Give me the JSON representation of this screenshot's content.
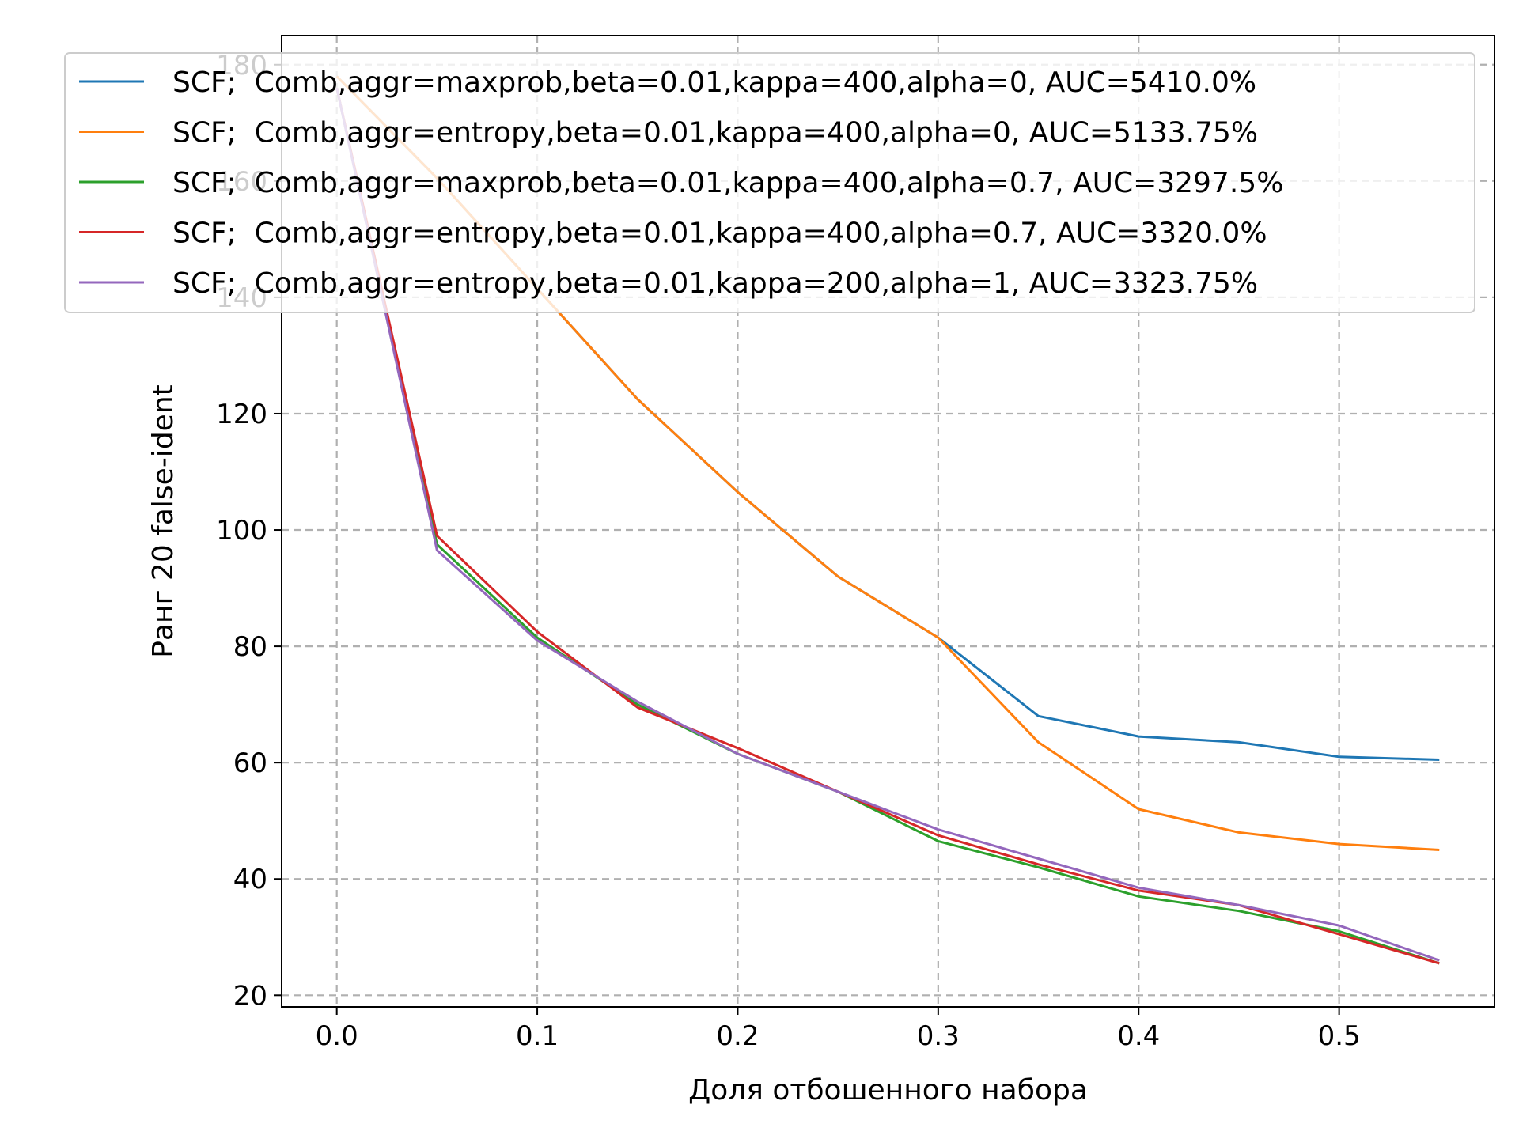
{
  "chart_data": {
    "type": "line",
    "xlabel": "Доля отбошенного набора",
    "ylabel": "Ранг 20 false-ident",
    "xlim": [
      -0.0275,
      0.5775
    ],
    "ylim": [
      18,
      185
    ],
    "xticks": [
      0.0,
      0.1,
      0.2,
      0.3,
      0.4,
      0.5
    ],
    "xtick_labels": [
      "0.0",
      "0.1",
      "0.2",
      "0.3",
      "0.4",
      "0.5"
    ],
    "yticks": [
      20,
      40,
      60,
      80,
      100,
      120,
      140,
      160,
      180
    ],
    "ytick_labels": [
      "20",
      "40",
      "60",
      "80",
      "100",
      "120",
      "140",
      "160",
      "180"
    ],
    "grid": true,
    "legend_placement": "top",
    "x": [
      0.0,
      0.05,
      0.1,
      0.15,
      0.2,
      0.25,
      0.3,
      0.35,
      0.4,
      0.45,
      0.5,
      0.55
    ],
    "series": [
      {
        "name": "SCF;  Comb,aggr=maxprob,beta=0.01,kappa=400,alpha=0, AUC=5410.0%",
        "color": "#1f77b4",
        "values": [
          178,
          160.5,
          141.5,
          122.5,
          106.5,
          92,
          81.5,
          68,
          64.5,
          63.5,
          61,
          60.5
        ]
      },
      {
        "name": "SCF;  Comb,aggr=entropy,beta=0.01,kappa=400,alpha=0, AUC=5133.75%",
        "color": "#ff7f0e",
        "values": [
          178,
          160.5,
          141.5,
          122.5,
          106.5,
          92,
          81.5,
          63.5,
          52,
          48,
          46,
          45
        ]
      },
      {
        "name": "SCF;  Comb,aggr=maxprob,beta=0.01,kappa=400,alpha=0.7, AUC=3297.5%",
        "color": "#2ca02c",
        "values": [
          176,
          97.5,
          81.5,
          70,
          61.5,
          55,
          46.5,
          42,
          37,
          34.5,
          31,
          25.5
        ]
      },
      {
        "name": "SCF;  Comb,aggr=entropy,beta=0.01,kappa=400,alpha=0.7, AUC=3320.0%",
        "color": "#d62728",
        "values": [
          176,
          99,
          82.5,
          69.5,
          62.5,
          55,
          47.5,
          42.5,
          38,
          35.5,
          30.5,
          25.5
        ]
      },
      {
        "name": "SCF;  Comb,aggr=entropy,beta=0.01,kappa=200,alpha=1, AUC=3323.75%",
        "color": "#9467bd",
        "values": [
          176,
          96.5,
          81,
          70.5,
          61.5,
          55,
          48.5,
          43.5,
          38.5,
          35.5,
          32,
          26
        ]
      }
    ]
  }
}
